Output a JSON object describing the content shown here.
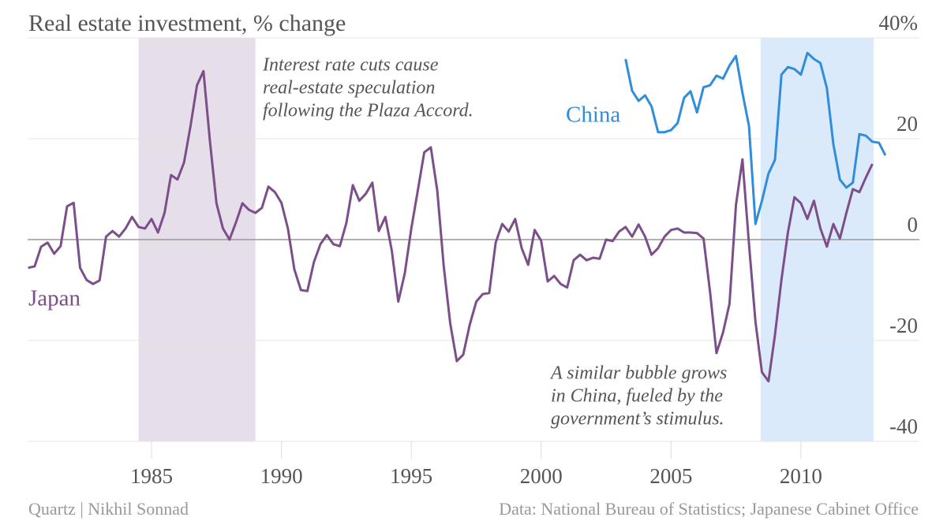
{
  "chart_data": {
    "type": "line",
    "title": "Real estate investment, % change",
    "source_left": "Quartz | Nikhil Sonnad",
    "source_right": "Data: National Bureau of Statistics; Japanese Cabinet Office",
    "xlim": [
      1980.23,
      2014.56
    ],
    "xticks": [
      1985,
      1990,
      1995,
      2000,
      2005,
      2010
    ],
    "ylim": [
      -40,
      40
    ],
    "yticks": [
      {
        "value": 40,
        "label": "40%"
      },
      20,
      0,
      -20,
      -40
    ],
    "grid": true,
    "shaded": [
      {
        "from": 1984.5,
        "to": 1989,
        "color": "#e6dee9"
      },
      {
        "from": 2008.45,
        "to": 2012.8,
        "color": "#dbeafb"
      }
    ],
    "annotations": [
      {
        "lines": [
          "Interest rate cuts cause",
          "real-estate speculation",
          "following the Plaza Accord."
        ]
      },
      {
        "lines": [
          "A similar bubble grows",
          "in China, fueled by the",
          "government’s stimulus."
        ]
      }
    ],
    "series": [
      {
        "name": "Japan",
        "color": "#7c4e8a",
        "x": [
          1980.25,
          1980.5,
          1980.75,
          1981,
          1981.25,
          1981.5,
          1981.75,
          1982,
          1982.25,
          1982.5,
          1982.75,
          1983,
          1983.25,
          1983.5,
          1983.75,
          1984,
          1984.25,
          1984.5,
          1984.75,
          1985,
          1985.25,
          1985.5,
          1985.75,
          1986,
          1986.25,
          1986.5,
          1986.75,
          1987,
          1987.25,
          1987.5,
          1987.75,
          1988,
          1988.25,
          1988.5,
          1988.75,
          1989,
          1989.25,
          1989.5,
          1989.75,
          1990,
          1990.25,
          1990.5,
          1990.75,
          1991,
          1991.25,
          1991.5,
          1991.75,
          1992,
          1992.25,
          1992.5,
          1992.75,
          1993,
          1993.25,
          1993.5,
          1993.75,
          1994,
          1994.25,
          1994.5,
          1994.75,
          1995,
          1995.25,
          1995.5,
          1995.75,
          1996,
          1996.25,
          1996.5,
          1996.75,
          1997,
          1997.25,
          1997.5,
          1997.75,
          1998,
          1998.25,
          1998.5,
          1998.75,
          1999,
          1999.25,
          1999.5,
          1999.75,
          2000,
          2000.25,
          2000.5,
          2000.75,
          2001,
          2001.25,
          2001.5,
          2001.75,
          2002,
          2002.25,
          2002.5,
          2002.75,
          2003,
          2003.25,
          2003.5,
          2003.75,
          2004,
          2004.25,
          2004.5,
          2004.75,
          2005,
          2005.25,
          2005.5,
          2005.75,
          2006,
          2006.25,
          2006.5,
          2006.75,
          2007,
          2007.25,
          2007.5,
          2007.75,
          2008,
          2008.25,
          2008.5,
          2008.75,
          2009,
          2009.25,
          2009.5,
          2009.75,
          2010,
          2010.25,
          2010.5,
          2010.75,
          2011,
          2011.25,
          2011.5,
          2011.75,
          2012,
          2012.25,
          2012.5,
          2012.75
        ],
        "values": [
          -5.6,
          -5.3,
          -1.4,
          -0.6,
          -2.8,
          -1.3,
          6.6,
          7.3,
          -5.6,
          -8.0,
          -8.8,
          -8.1,
          0.6,
          1.7,
          0.6,
          2.2,
          4.5,
          2.5,
          2.2,
          4.1,
          1.4,
          5.3,
          12.8,
          11.9,
          15.3,
          22.5,
          30.6,
          33.4,
          19.4,
          7.2,
          2.2,
          0,
          3.4,
          7.2,
          5.9,
          5.3,
          6.3,
          10.5,
          9.4,
          7.3,
          2.2,
          -5.9,
          -10.0,
          -10.2,
          -4.5,
          -0.9,
          0.9,
          -0.9,
          -1.3,
          3.3,
          10.8,
          7.7,
          9.1,
          11.3,
          1.7,
          4.5,
          -2.2,
          -12.3,
          -6.7,
          2.2,
          9.7,
          17.3,
          18.3,
          9.7,
          -5.3,
          -16.6,
          -24.1,
          -22.8,
          -16.9,
          -12.3,
          -10.8,
          -10.6,
          -0.6,
          3.1,
          1.6,
          4.1,
          -1.7,
          -5.0,
          1.9,
          -0.2,
          -8.3,
          -7.2,
          -8.8,
          -9.5,
          -4.1,
          -3.0,
          -4.1,
          -3.6,
          -3.8,
          0,
          -0.3,
          1.6,
          2.5,
          0.6,
          3.0,
          0.6,
          -3.0,
          -1.7,
          0.6,
          1.9,
          2.2,
          1.4,
          1.4,
          1.3,
          0.2,
          -10.3,
          -22.5,
          -18.4,
          -12.7,
          6.9,
          15.9,
          -0.9,
          -16.3,
          -26.3,
          -28.1,
          -18.9,
          -8.0,
          1.4,
          8.4,
          7.2,
          4.1,
          7.7,
          2.2,
          -1.4,
          3.1,
          0.2,
          5.3,
          10,
          9.4,
          12.3,
          15.0
        ]
      },
      {
        "name": "China",
        "color": "#2f8ddb",
        "x": [
          2003.25,
          2003.5,
          2003.75,
          2004,
          2004.25,
          2004.5,
          2004.75,
          2005,
          2005.25,
          2005.5,
          2005.75,
          2006,
          2006.25,
          2006.5,
          2006.75,
          2007,
          2007.25,
          2007.5,
          2007.75,
          2008,
          2008.25,
          2008.5,
          2008.75,
          2009,
          2009.25,
          2009.5,
          2009.75,
          2010,
          2010.25,
          2010.5,
          2010.75,
          2011,
          2011.25,
          2011.5,
          2011.75,
          2012,
          2012.25,
          2012.5,
          2012.75,
          2013,
          2013.25
        ],
        "values": [
          35.8,
          29.5,
          27.5,
          28.6,
          26.4,
          21.3,
          21.3,
          21.7,
          23.1,
          28.1,
          29.4,
          25.2,
          30.2,
          30.6,
          32.5,
          31.9,
          34.5,
          36.4,
          29.1,
          22.5,
          3.1,
          7.7,
          13.1,
          15.8,
          32.7,
          34.2,
          33.8,
          32.7,
          37.0,
          35.8,
          35.0,
          30.0,
          18.9,
          11.9,
          10.3,
          11.3,
          20.9,
          20.6,
          19.4,
          19.2,
          16.7
        ]
      }
    ]
  }
}
